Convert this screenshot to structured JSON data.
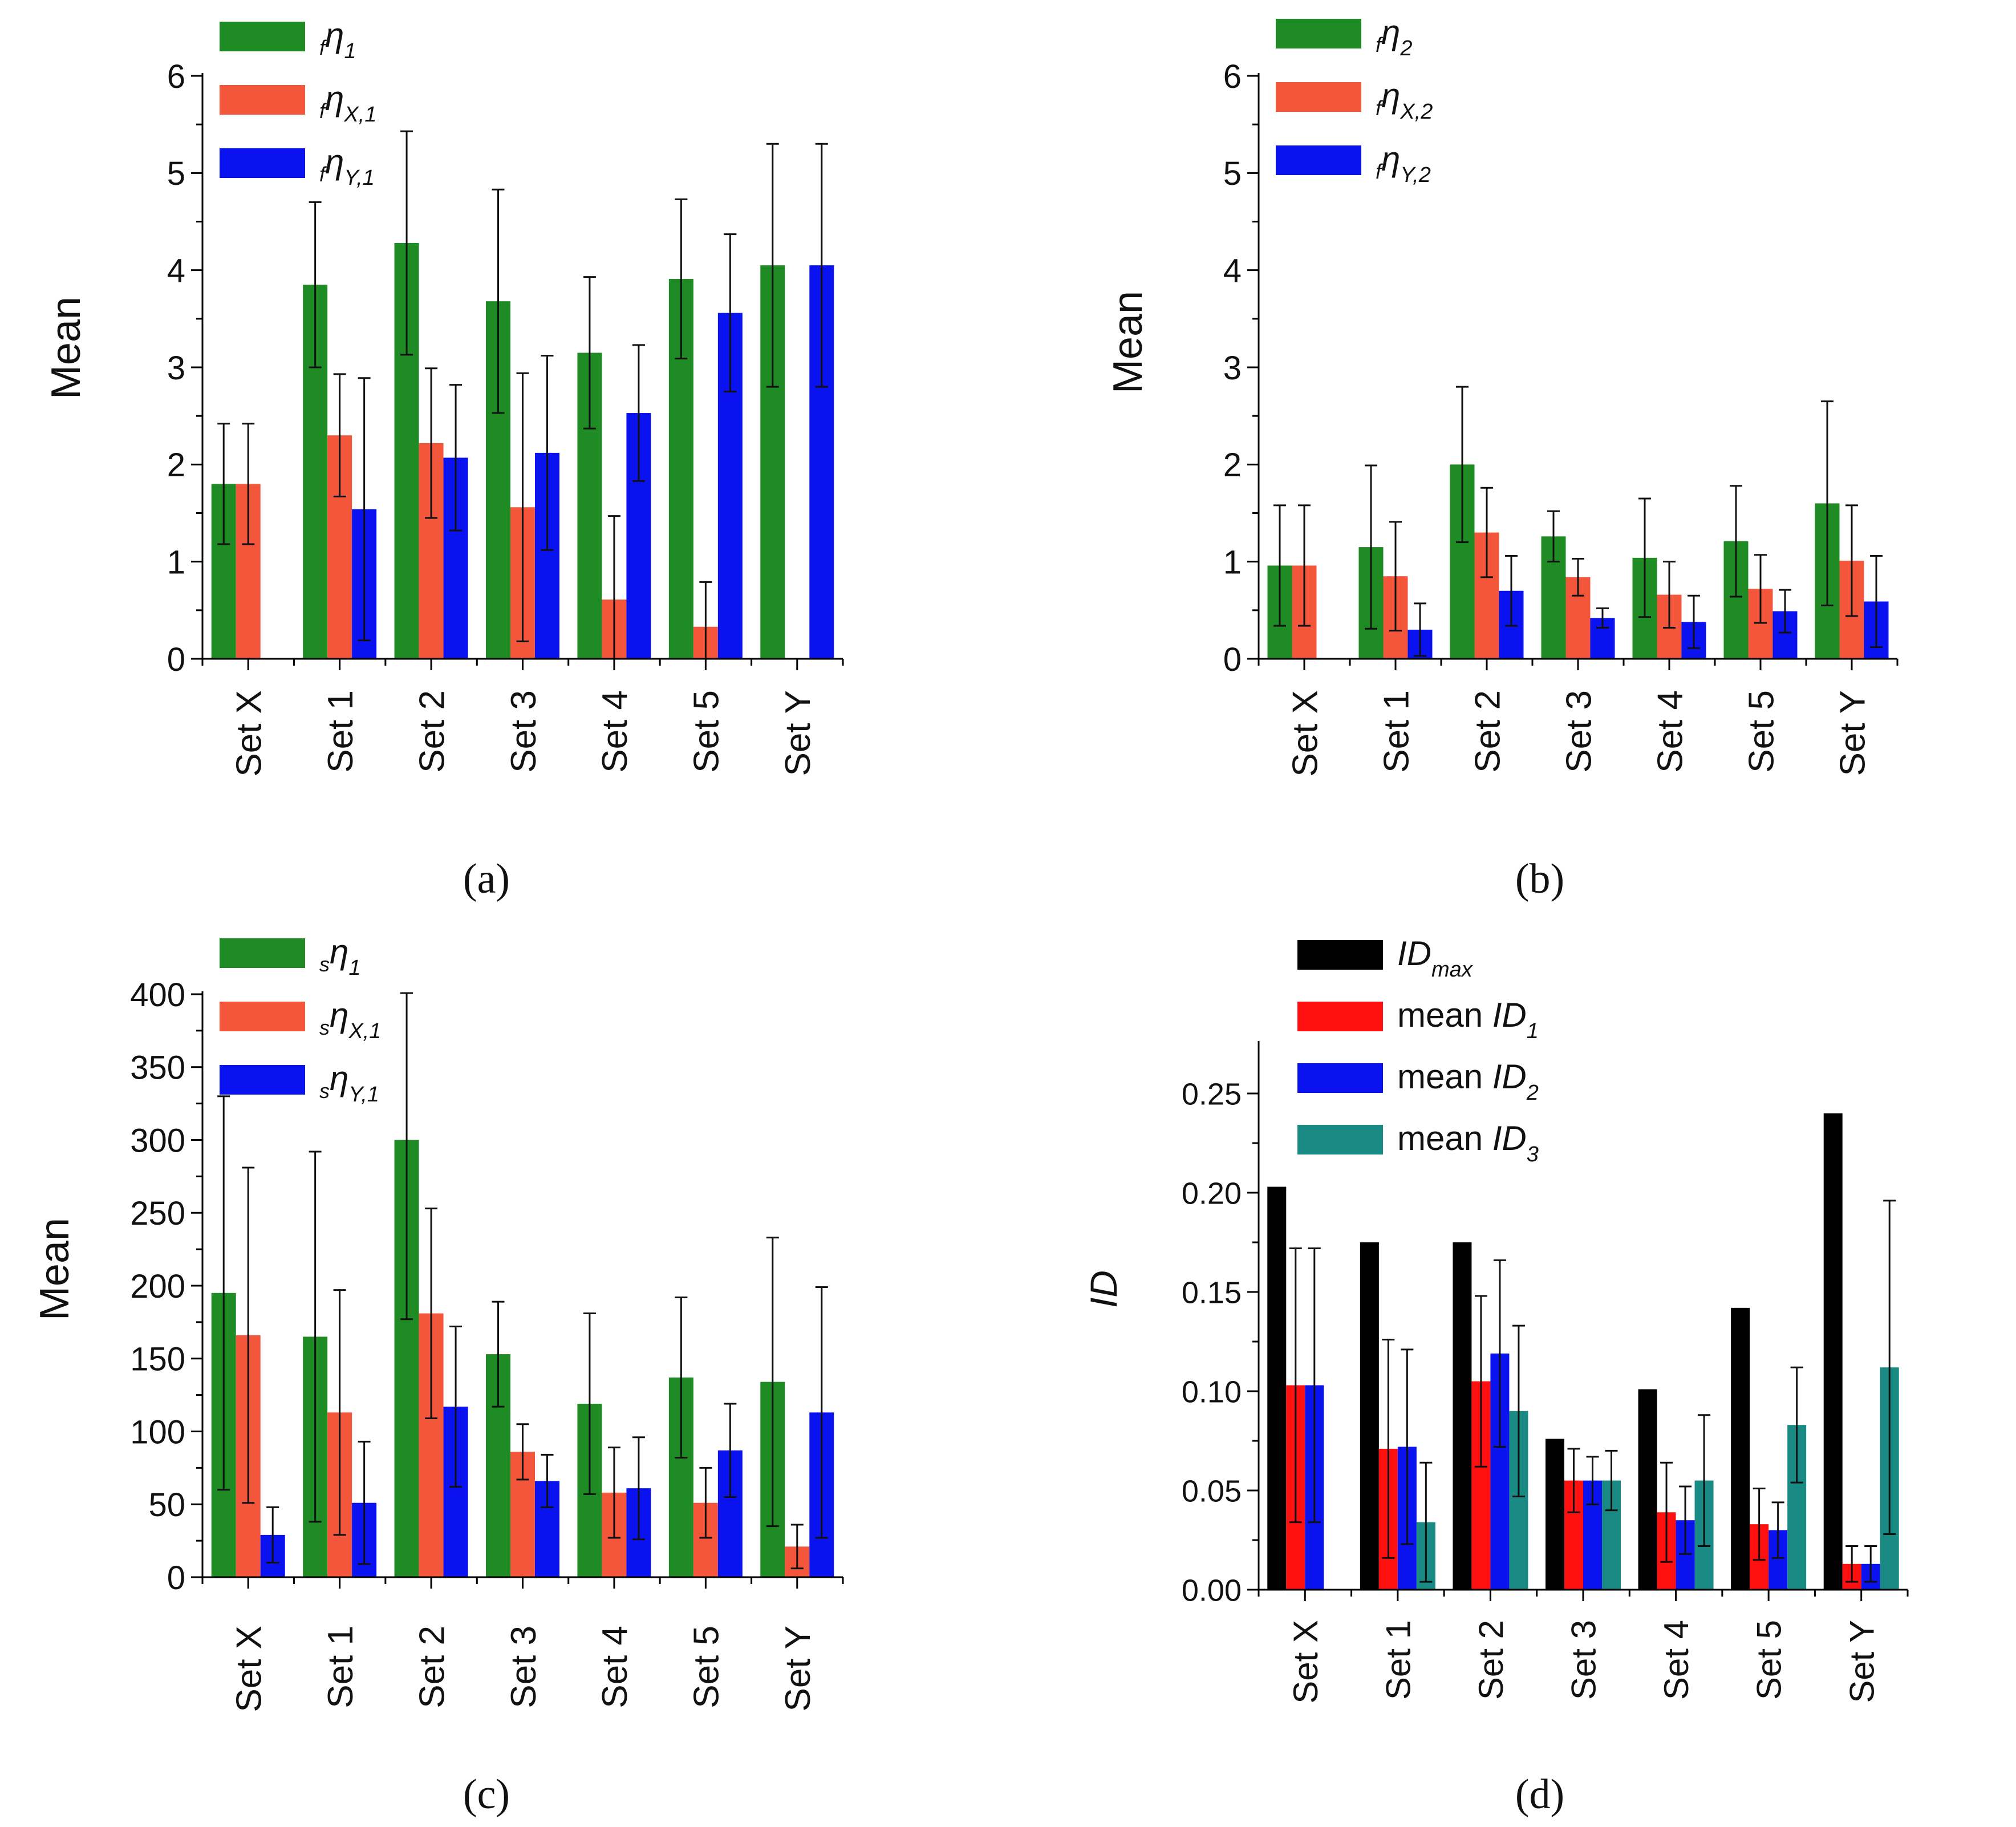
{
  "colors": {
    "green": "#1e8b24",
    "orange": "#f4563c",
    "blue": "#0a12f0",
    "black": "#000000",
    "red": "#ff1010",
    "teal": "#1a8a85"
  },
  "chart_data": [
    {
      "id": "a",
      "type": "bar",
      "panel_label": "(a)",
      "ylabel": "Mean",
      "xlabel": "",
      "ylim": [
        0,
        6
      ],
      "yticks": [
        0,
        1,
        2,
        3,
        4,
        5,
        6
      ],
      "categories": [
        "Set X",
        "Set 1",
        "Set 2",
        "Set 3",
        "Set 4",
        "Set 5",
        "Set Y"
      ],
      "legend_position": "top-left",
      "series": [
        {
          "name": "fη1",
          "legend": {
            "pre": "f",
            "sym": "η",
            "sub": "1"
          },
          "color": "green",
          "values": [
            1.8,
            3.85,
            4.28,
            3.68,
            3.15,
            3.91,
            4.05
          ],
          "errors": [
            0.62,
            0.85,
            1.15,
            1.15,
            0.78,
            0.82,
            1.25
          ]
        },
        {
          "name": "fηX,1",
          "legend": {
            "pre": "f",
            "sym": "η",
            "sub": "X,1"
          },
          "color": "orange",
          "values": [
            1.8,
            2.3,
            2.22,
            1.56,
            0.61,
            0.33,
            null
          ],
          "errors": [
            0.62,
            0.63,
            0.77,
            1.38,
            0.86,
            0.46,
            null
          ]
        },
        {
          "name": "fηY,1",
          "legend": {
            "pre": "f",
            "sym": "η",
            "sub": "Y,1"
          },
          "color": "blue",
          "values": [
            null,
            1.54,
            2.07,
            2.12,
            2.53,
            3.56,
            4.05
          ],
          "errors": [
            null,
            1.35,
            0.75,
            1.0,
            0.7,
            0.81,
            1.25
          ]
        }
      ]
    },
    {
      "id": "b",
      "type": "bar",
      "panel_label": "(b)",
      "ylabel": "Mean",
      "xlabel": "",
      "ylim": [
        0,
        6
      ],
      "yticks": [
        0,
        1,
        2,
        3,
        4,
        5,
        6
      ],
      "categories": [
        "Set X",
        "Set 1",
        "Set 2",
        "Set 3",
        "Set 4",
        "Set 5",
        "Set Y"
      ],
      "legend_position": "top-left",
      "series": [
        {
          "name": "fη2",
          "legend": {
            "pre": "f",
            "sym": "η",
            "sub": "2"
          },
          "color": "green",
          "values": [
            0.96,
            1.15,
            2.0,
            1.26,
            1.04,
            1.21,
            1.6
          ],
          "errors": [
            0.62,
            0.84,
            0.8,
            0.26,
            0.61,
            0.57,
            1.05
          ]
        },
        {
          "name": "fηX,2",
          "legend": {
            "pre": "f",
            "sym": "η",
            "sub": "X,2"
          },
          "color": "orange",
          "values": [
            0.96,
            0.85,
            1.3,
            0.84,
            0.66,
            0.72,
            1.01
          ],
          "errors": [
            0.62,
            0.56,
            0.46,
            0.19,
            0.34,
            0.35,
            0.57
          ]
        },
        {
          "name": "fηY,2",
          "legend": {
            "pre": "f",
            "sym": "η",
            "sub": "Y,2"
          },
          "color": "blue",
          "values": [
            null,
            0.3,
            0.7,
            0.42,
            0.38,
            0.49,
            0.59
          ],
          "errors": [
            null,
            0.27,
            0.36,
            0.1,
            0.27,
            0.22,
            0.47
          ]
        }
      ]
    },
    {
      "id": "c",
      "type": "bar",
      "panel_label": "(c)",
      "ylabel": "Mean",
      "xlabel": "",
      "ylim": [
        0,
        400
      ],
      "yticks": [
        0,
        50,
        100,
        150,
        200,
        250,
        300,
        350,
        400
      ],
      "categories": [
        "Set X",
        "Set 1",
        "Set 2",
        "Set 3",
        "Set 4",
        "Set 5",
        "Set Y"
      ],
      "legend_position": "top-left",
      "series": [
        {
          "name": "sη1",
          "legend": {
            "pre": "s",
            "sym": "η",
            "sub": "1"
          },
          "color": "green",
          "values": [
            195,
            165,
            300,
            153,
            119,
            137,
            134
          ],
          "errors": [
            135,
            127,
            123,
            36,
            62,
            55,
            99
          ]
        },
        {
          "name": "sηX,1",
          "legend": {
            "pre": "s",
            "sym": "η",
            "sub": "X,1"
          },
          "color": "orange",
          "values": [
            166,
            113,
            181,
            86,
            58,
            51,
            21
          ],
          "errors": [
            115,
            84,
            72,
            19,
            31,
            24,
            15
          ]
        },
        {
          "name": "sηY,1",
          "legend": {
            "pre": "s",
            "sym": "η",
            "sub": "Y,1"
          },
          "color": "blue",
          "values": [
            29,
            51,
            117,
            66,
            61,
            87,
            113
          ],
          "errors": [
            19,
            42,
            55,
            18,
            35,
            32,
            86
          ]
        }
      ]
    },
    {
      "id": "d",
      "type": "bar",
      "panel_label": "(d)",
      "ylabel": "ID",
      "xlabel": "",
      "ylim": [
        0,
        0.275
      ],
      "yticks": [
        0.0,
        0.05,
        0.1,
        0.15,
        0.2,
        0.25
      ],
      "ytick_labels": [
        "0.00",
        "0.05",
        "0.10",
        "0.15",
        "0.20",
        "0.25"
      ],
      "categories": [
        "Set X",
        "Set 1",
        "Set 2",
        "Set 3",
        "Set 4",
        "Set 5",
        "Set Y"
      ],
      "legend_position": "top-left",
      "series": [
        {
          "name": "IDmax",
          "legend": {
            "pre": "",
            "sym": "ID",
            "sub": "max"
          },
          "color": "black",
          "values": [
            0.203,
            0.175,
            0.175,
            0.076,
            0.101,
            0.142,
            0.24
          ],
          "errors": [
            null,
            null,
            null,
            null,
            null,
            null,
            null
          ]
        },
        {
          "name": "mean ID1",
          "legend": {
            "pre": "mean ",
            "sym": "ID",
            "sub": "1"
          },
          "color": "red",
          "values": [
            0.103,
            0.071,
            0.105,
            0.055,
            0.039,
            0.033,
            0.013
          ],
          "errors": [
            0.069,
            0.055,
            0.043,
            0.016,
            0.025,
            0.018,
            0.009
          ]
        },
        {
          "name": "mean ID2",
          "legend": {
            "pre": "mean ",
            "sym": "ID",
            "sub": "2"
          },
          "color": "blue",
          "values": [
            0.103,
            0.072,
            0.119,
            0.055,
            0.035,
            0.03,
            0.013
          ],
          "errors": [
            0.069,
            0.049,
            0.047,
            0.012,
            0.017,
            0.014,
            0.009
          ]
        },
        {
          "name": "mean ID3",
          "legend": {
            "pre": "mean ",
            "sym": "ID",
            "sub": "3"
          },
          "color": "teal",
          "values": [
            null,
            0.034,
            0.09,
            0.055,
            0.055,
            0.083,
            0.112
          ],
          "errors": [
            null,
            0.03,
            0.043,
            0.015,
            0.033,
            0.029,
            0.084
          ]
        }
      ]
    }
  ]
}
